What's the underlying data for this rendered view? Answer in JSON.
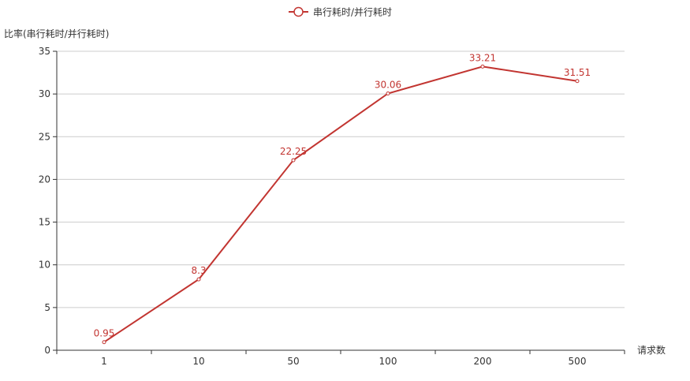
{
  "chart_data": {
    "type": "line",
    "legend": {
      "entries": [
        "串行耗时/并行耗时"
      ],
      "placement": "top-center"
    },
    "ylabel": "比率(串行耗时/并行耗时)",
    "xlabel": "请求数",
    "categories": [
      "1",
      "10",
      "50",
      "100",
      "200",
      "500"
    ],
    "series": [
      {
        "name": "串行耗时/并行耗时",
        "values": [
          0.95,
          8.3,
          22.25,
          30.06,
          33.21,
          31.51
        ]
      }
    ],
    "ylim": [
      0,
      35
    ],
    "yticks": [
      0,
      5,
      10,
      15,
      20,
      25,
      30,
      35
    ],
    "grid": true,
    "colors": {
      "series": "#c23531",
      "grid": "#cccccc",
      "axis": "#333333"
    }
  }
}
